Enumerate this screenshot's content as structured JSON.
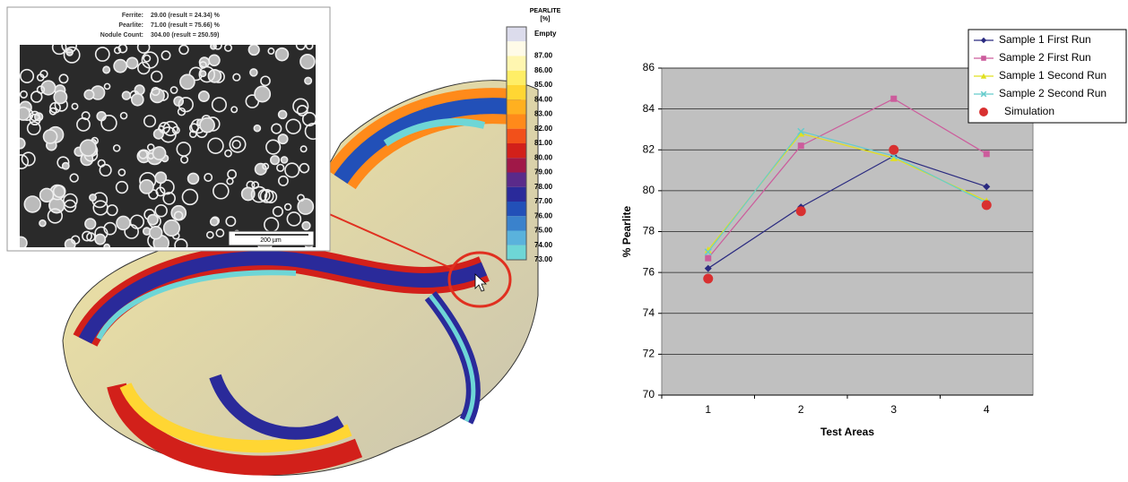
{
  "micrograph": {
    "rows": [
      {
        "label": "Ferrite:",
        "value": "29.00 (result = 24.34) %"
      },
      {
        "label": "Pearlite:",
        "value": "71.00 (result = 75.66) %"
      },
      {
        "label": "Nodule Count:",
        "value": "304.00 (result = 250.59)"
      }
    ],
    "scale_bar": "200 µm"
  },
  "contour_legend": {
    "title_lines": [
      "PEARLITE",
      "[%]"
    ],
    "items": [
      {
        "label": "Empty",
        "color": "#dcdcec"
      },
      {
        "label": "87.00",
        "color": "#fffbe8"
      },
      {
        "label": "86.00",
        "color": "#fff6b0"
      },
      {
        "label": "85.00",
        "color": "#ffee66"
      },
      {
        "label": "84.00",
        "color": "#ffd633"
      },
      {
        "label": "83.00",
        "color": "#ffb020"
      },
      {
        "label": "82.00",
        "color": "#ff8a1a"
      },
      {
        "label": "81.00",
        "color": "#f2501a"
      },
      {
        "label": "80.00",
        "color": "#d2201a"
      },
      {
        "label": "79.00",
        "color": "#a01848"
      },
      {
        "label": "78.00",
        "color": "#5a2a8a"
      },
      {
        "label": "77.00",
        "color": "#2a2a9a"
      },
      {
        "label": "76.00",
        "color": "#2250b8"
      },
      {
        "label": "75.00",
        "color": "#3a82cc"
      },
      {
        "label": "74.00",
        "color": "#5ab2dc"
      },
      {
        "label": "73.00",
        "color": "#6ed6d6"
      }
    ]
  },
  "chart_data": {
    "type": "line",
    "x_label": "Test Areas",
    "y_label": "% Pearlite",
    "categories": [
      "1",
      "2",
      "3",
      "4"
    ],
    "ylim": [
      70,
      86
    ],
    "yticks": [
      70,
      72,
      74,
      76,
      78,
      80,
      82,
      84,
      86
    ],
    "grid": true,
    "legend": "top-right",
    "series": [
      {
        "name": "Sample 1 First Run",
        "color": "#2a2a80",
        "marker": "diamond",
        "line": true,
        "values": [
          76.2,
          79.2,
          81.7,
          80.2
        ]
      },
      {
        "name": "Sample 2 First Run",
        "color": "#cc5c9c",
        "marker": "square",
        "line": true,
        "values": [
          76.7,
          82.2,
          84.5,
          81.8
        ]
      },
      {
        "name": "Sample 1 Second Run",
        "color": "#e0e020",
        "marker": "triangle",
        "line": true,
        "values": [
          77.1,
          82.8,
          81.6,
          79.5
        ]
      },
      {
        "name": "Sample 2 Second Run",
        "color": "#66cccc",
        "marker": "cross",
        "line": true,
        "values": [
          77.0,
          82.9,
          81.7,
          79.4
        ]
      },
      {
        "name": "Simulation",
        "color": "#d83030",
        "marker": "circle",
        "line": false,
        "values": [
          75.7,
          79.0,
          82.0,
          79.3
        ]
      }
    ]
  }
}
